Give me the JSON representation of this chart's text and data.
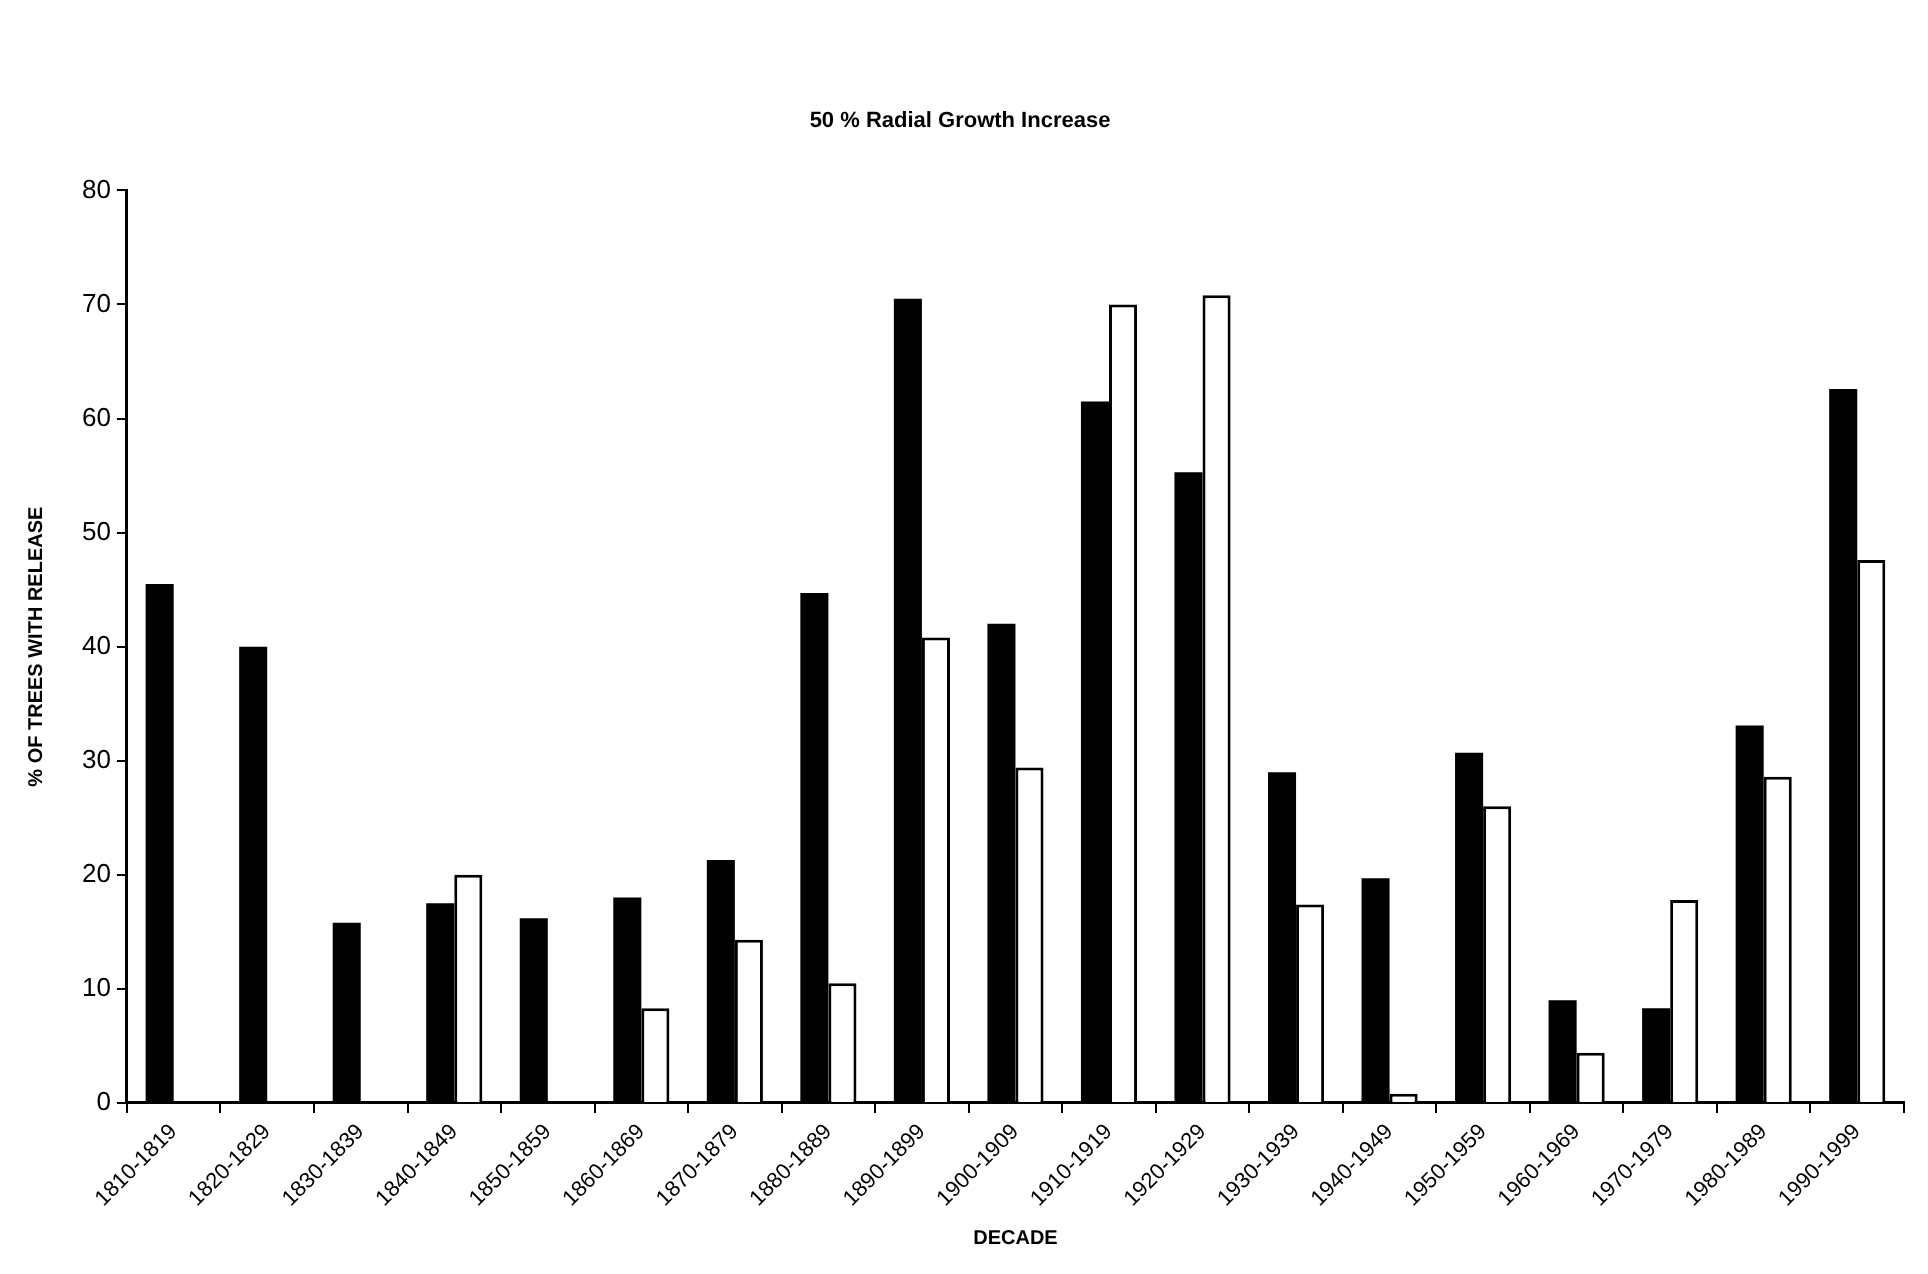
{
  "chart_data": {
    "type": "bar",
    "title": "50 % Radial Growth Increase",
    "xlabel": "DECADE",
    "ylabel": "% OF TREES WITH RELEASE",
    "categories": [
      "1810-1819",
      "1820-1829",
      "1830-1839",
      "1840-1849",
      "1850-1859",
      "1860-1869",
      "1870-1879",
      "1880-1889",
      "1890-1899",
      "1900-1909",
      "1910-1919",
      "1920-1929",
      "1930-1939",
      "1940-1949",
      "1950-1959",
      "1960-1969",
      "1970-1979",
      "1980-1989",
      "1990-1999"
    ],
    "series": [
      {
        "color": "#000000",
        "values": [
          45.5,
          40,
          15.8,
          17.5,
          16.2,
          18,
          21.3,
          44.7,
          70.5,
          42,
          61.5,
          55.3,
          29,
          19.7,
          30.7,
          9,
          8.3,
          33.1,
          62.6
        ]
      },
      {
        "color": "#ffffff",
        "values": [
          null,
          null,
          null,
          20,
          null,
          8.3,
          14.3,
          10.5,
          40.8,
          29.4,
          70,
          70.8,
          17.4,
          0.8,
          26,
          4.4,
          17.8,
          28.6,
          47.6
        ]
      }
    ],
    "ylim": [
      0,
      80
    ],
    "yticks": [
      0,
      10,
      20,
      30,
      40,
      50,
      60,
      70,
      80
    ],
    "grid": false,
    "legend": false
  }
}
